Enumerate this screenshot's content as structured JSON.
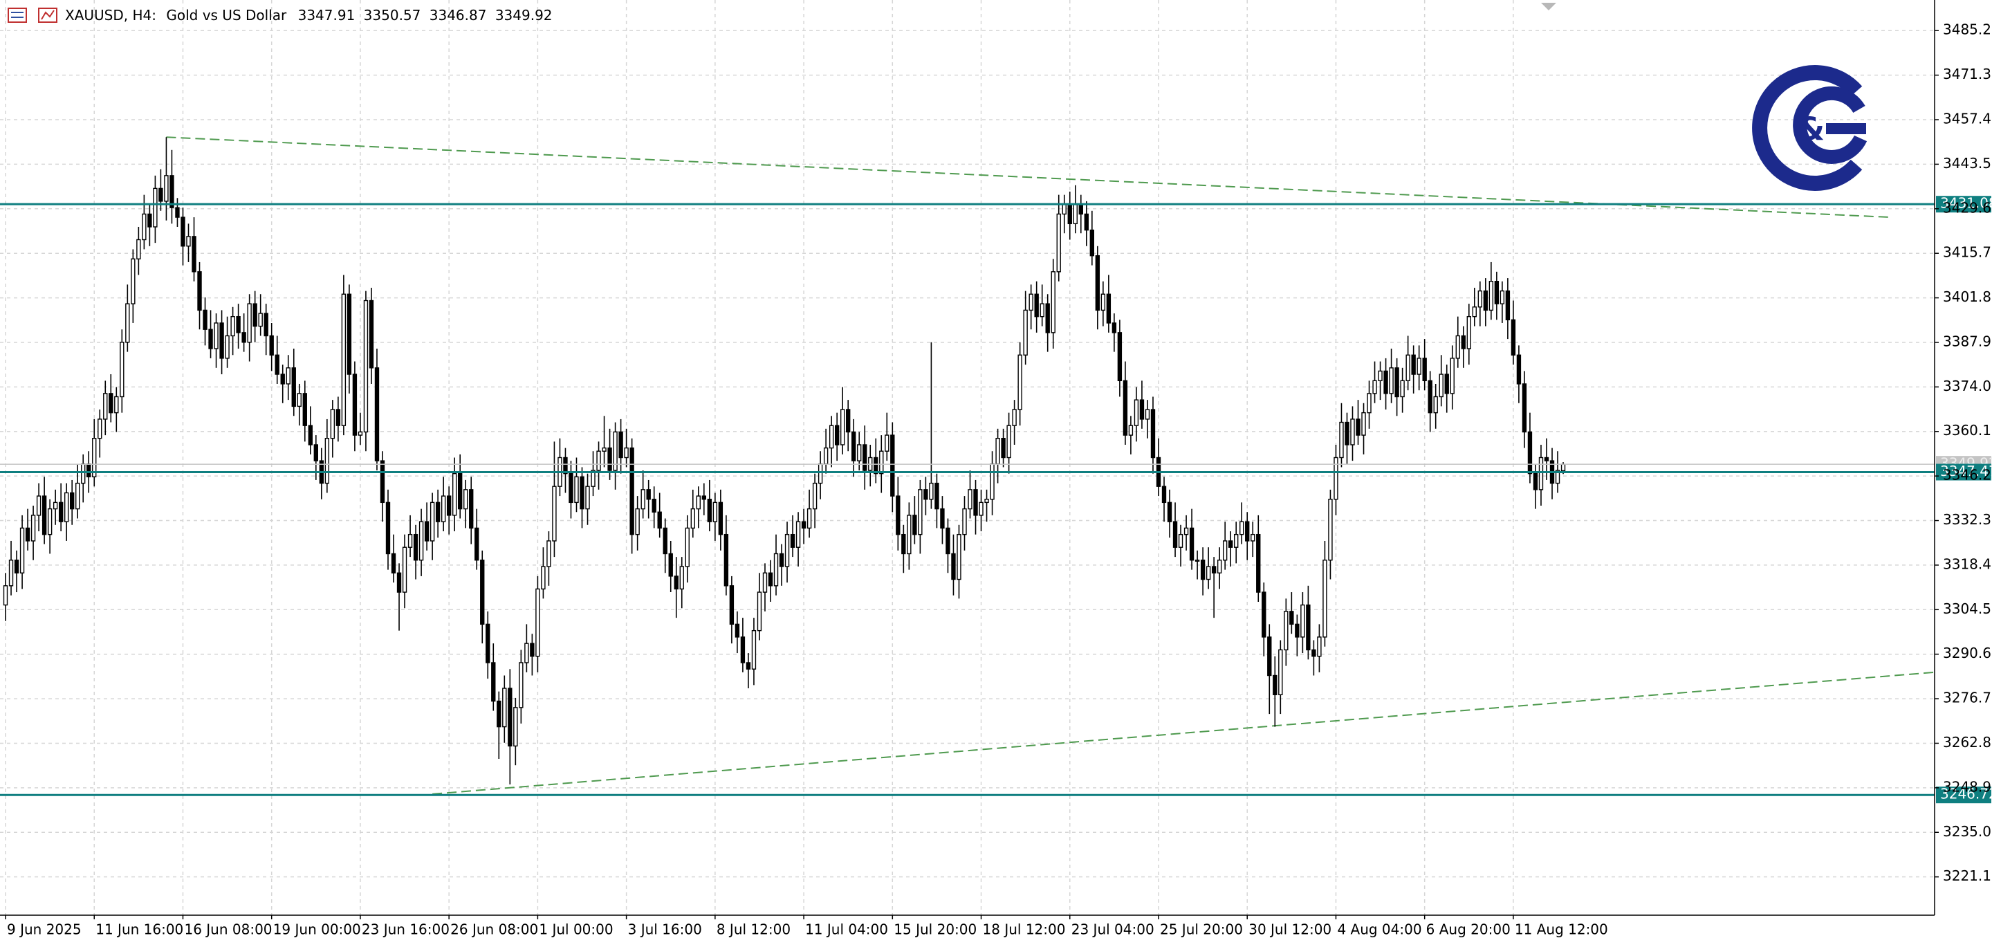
{
  "chart_data": {
    "type": "candlestick",
    "symbol": "XAUUSD, H4:",
    "description": "Gold vs US Dollar",
    "open": [
      3306,
      3312,
      3320,
      3316,
      3330,
      3326,
      3334,
      3340,
      3328,
      3336,
      3338,
      3332,
      3341,
      3336,
      3344,
      3350,
      3346,
      3358,
      3364,
      3372,
      3366,
      3371,
      3388,
      3400,
      3414,
      3420,
      3428,
      3424,
      3436,
      3432,
      3440,
      3430,
      3427,
      3418,
      3421,
      3410,
      3398,
      3392,
      3386,
      3394,
      3383,
      3390,
      3396,
      3391,
      3388,
      3400,
      3393,
      3397,
      3390,
      3384,
      3378,
      3375,
      3380,
      3368,
      3372,
      3362,
      3356,
      3351,
      3344,
      3358,
      3367,
      3362,
      3403,
      3378,
      3359,
      3360,
      3401,
      3380,
      3351,
      3338,
      3322,
      3316,
      3310,
      3324,
      3328,
      3320,
      3332,
      3326,
      3338,
      3332,
      3340,
      3334,
      3347,
      3336,
      3342,
      3330,
      3320,
      3300,
      3288,
      3276,
      3268,
      3280,
      3262,
      3274,
      3288,
      3294,
      3290,
      3311,
      3318,
      3326,
      3343,
      3352,
      3347,
      3338,
      3346,
      3336,
      3343,
      3348,
      3354,
      3355,
      3348,
      3360,
      3352,
      3355,
      3328,
      3336,
      3342,
      3339,
      3335,
      3330,
      3322,
      3315,
      3311,
      3318,
      3330,
      3336,
      3340,
      3339,
      3332,
      3338,
      3328,
      3312,
      3300,
      3296,
      3288,
      3286,
      3298,
      3310,
      3316,
      3312,
      3322,
      3318,
      3328,
      3324,
      3332,
      3330,
      3336,
      3344,
      3350,
      3355,
      3362,
      3356,
      3367,
      3360,
      3351,
      3356,
      3348,
      3352,
      3347,
      3354,
      3359,
      3340,
      3328,
      3322,
      3334,
      3328,
      3342,
      3339,
      3344,
      3336,
      3330,
      3322,
      3314,
      3328,
      3336,
      3342,
      3334,
      3338,
      3339,
      3350,
      3358,
      3352,
      3362,
      3367,
      3384,
      3398,
      3403,
      3396,
      3400,
      3391,
      3410,
      3428,
      3431,
      3425,
      3431,
      3428,
      3423,
      3415,
      3398,
      3403,
      3394,
      3391,
      3376,
      3359,
      3362,
      3370,
      3364,
      3367,
      3352,
      3343,
      3338,
      3332,
      3324,
      3328,
      3330,
      3320,
      3320,
      3314,
      3318,
      3316,
      3320,
      3326,
      3324,
      3328,
      3332,
      3326,
      3328,
      3310,
      3296,
      3284,
      3278,
      3292,
      3304,
      3300,
      3296,
      3306,
      3292,
      3290,
      3296,
      3320,
      3339,
      3352,
      3363,
      3356,
      3364,
      3359,
      3366,
      3372,
      3376,
      3379,
      3372,
      3380,
      3371,
      3376,
      3384,
      3378,
      3383,
      3376,
      3366,
      3371,
      3378,
      3372,
      3383,
      3390,
      3386,
      3396,
      3399,
      3404,
      3398,
      3407,
      3400,
      3404,
      3395,
      3384,
      3375,
      3360,
      3347,
      3342,
      3352,
      3351,
      3344,
      3347.91
    ],
    "high": [
      3316,
      3326,
      3323,
      3334,
      3336,
      3337,
      3344,
      3346,
      3339,
      3342,
      3344,
      3344,
      3345,
      3350,
      3353,
      3354,
      3364,
      3367,
      3376,
      3378,
      3374,
      3392,
      3406,
      3417,
      3424,
      3434,
      3431,
      3440,
      3442,
      3452,
      3448,
      3433,
      3430,
      3425,
      3427,
      3413,
      3402,
      3398,
      3397,
      3398,
      3396,
      3399,
      3400,
      3397,
      3403,
      3404,
      3403,
      3400,
      3394,
      3390,
      3381,
      3384,
      3386,
      3375,
      3376,
      3368,
      3359,
      3355,
      3364,
      3370,
      3371,
      3409,
      3406,
      3382,
      3366,
      3404,
      3405,
      3386,
      3354,
      3342,
      3328,
      3319,
      3328,
      3334,
      3331,
      3336,
      3338,
      3341,
      3342,
      3346,
      3343,
      3352,
      3353,
      3345,
      3346,
      3336,
      3323,
      3304,
      3294,
      3279,
      3284,
      3286,
      3277,
      3292,
      3300,
      3297,
      3315,
      3324,
      3329,
      3357,
      3358,
      3355,
      3351,
      3352,
      3349,
      3347,
      3354,
      3357,
      3365,
      3361,
      3363,
      3364,
      3361,
      3358,
      3340,
      3348,
      3345,
      3343,
      3341,
      3333,
      3326,
      3321,
      3321,
      3334,
      3342,
      3343,
      3344,
      3345,
      3341,
      3342,
      3334,
      3315,
      3304,
      3302,
      3291,
      3302,
      3316,
      3319,
      3320,
      3328,
      3325,
      3332,
      3334,
      3335,
      3336,
      3342,
      3347,
      3354,
      3361,
      3365,
      3366,
      3374,
      3370,
      3364,
      3360,
      3362,
      3356,
      3358,
      3359,
      3366,
      3363,
      3346,
      3331,
      3338,
      3340,
      3345,
      3346,
      3388,
      3347,
      3340,
      3333,
      3328,
      3331,
      3340,
      3348,
      3345,
      3342,
      3342,
      3354,
      3361,
      3361,
      3366,
      3370,
      3388,
      3404,
      3406,
      3407,
      3406,
      3403,
      3414,
      3434,
      3434,
      3435,
      3437,
      3434,
      3432,
      3429,
      3418,
      3407,
      3409,
      3397,
      3395,
      3382,
      3365,
      3374,
      3376,
      3370,
      3371,
      3358,
      3346,
      3342,
      3338,
      3331,
      3334,
      3336,
      3323,
      3324,
      3324,
      3321,
      3324,
      3332,
      3329,
      3332,
      3338,
      3335,
      3332,
      3334,
      3313,
      3300,
      3290,
      3295,
      3308,
      3310,
      3303,
      3310,
      3312,
      3295,
      3300,
      3326,
      3342,
      3356,
      3369,
      3366,
      3368,
      3370,
      3369,
      3376,
      3382,
      3382,
      3383,
      3386,
      3383,
      3380,
      3390,
      3387,
      3387,
      3389,
      3379,
      3375,
      3384,
      3381,
      3387,
      3396,
      3393,
      3400,
      3405,
      3407,
      3408,
      3413,
      3410,
      3407,
      3408,
      3401,
      3387,
      3379,
      3366,
      3350,
      3356,
      3358,
      3355,
      3354,
      3350.57
    ],
    "low": [
      3301,
      3309,
      3310,
      3311,
      3323,
      3320,
      3329,
      3325,
      3322,
      3331,
      3329,
      3326,
      3331,
      3333,
      3338,
      3341,
      3343,
      3352,
      3359,
      3363,
      3360,
      3366,
      3385,
      3394,
      3409,
      3417,
      3418,
      3419,
      3429,
      3426,
      3425,
      3424,
      3412,
      3413,
      3407,
      3392,
      3387,
      3383,
      3380,
      3378,
      3380,
      3384,
      3386,
      3385,
      3382,
      3388,
      3390,
      3384,
      3379,
      3375,
      3369,
      3370,
      3365,
      3362,
      3357,
      3353,
      3345,
      3339,
      3341,
      3352,
      3357,
      3359,
      3372,
      3354,
      3356,
      3354,
      3375,
      3348,
      3332,
      3317,
      3313,
      3298,
      3305,
      3321,
      3314,
      3315,
      3323,
      3320,
      3327,
      3329,
      3328,
      3329,
      3333,
      3330,
      3325,
      3317,
      3294,
      3283,
      3273,
      3258,
      3263,
      3250,
      3256,
      3269,
      3285,
      3284,
      3285,
      3308,
      3312,
      3321,
      3340,
      3341,
      3333,
      3335,
      3330,
      3331,
      3340,
      3342,
      3349,
      3345,
      3342,
      3347,
      3349,
      3322,
      3323,
      3333,
      3333,
      3330,
      3327,
      3316,
      3310,
      3302,
      3305,
      3313,
      3327,
      3330,
      3334,
      3329,
      3326,
      3323,
      3309,
      3294,
      3291,
      3285,
      3280,
      3281,
      3295,
      3304,
      3307,
      3309,
      3312,
      3313,
      3321,
      3318,
      3325,
      3327,
      3330,
      3339,
      3347,
      3349,
      3351,
      3353,
      3354,
      3346,
      3348,
      3342,
      3343,
      3344,
      3341,
      3351,
      3335,
      3323,
      3316,
      3317,
      3325,
      3322,
      3334,
      3336,
      3330,
      3325,
      3316,
      3309,
      3308,
      3323,
      3333,
      3328,
      3329,
      3332,
      3334,
      3344,
      3349,
      3347,
      3356,
      3362,
      3381,
      3392,
      3391,
      3393,
      3385,
      3386,
      3407,
      3422,
      3420,
      3422,
      3422,
      3418,
      3412,
      3392,
      3393,
      3391,
      3385,
      3371,
      3356,
      3353,
      3357,
      3361,
      3358,
      3347,
      3340,
      3332,
      3327,
      3321,
      3318,
      3323,
      3317,
      3314,
      3309,
      3311,
      3302,
      3311,
      3317,
      3318,
      3319,
      3325,
      3320,
      3321,
      3307,
      3290,
      3272,
      3268,
      3272,
      3287,
      3297,
      3290,
      3291,
      3289,
      3284,
      3285,
      3293,
      3314,
      3334,
      3349,
      3350,
      3351,
      3356,
      3353,
      3361,
      3369,
      3370,
      3367,
      3369,
      3365,
      3366,
      3373,
      3372,
      3373,
      3373,
      3360,
      3361,
      3368,
      3366,
      3367,
      3380,
      3380,
      3381,
      3393,
      3393,
      3393,
      3395,
      3395,
      3394,
      3389,
      3381,
      3369,
      3355,
      3344,
      3336,
      3337,
      3345,
      3339,
      3341,
      3346.87
    ],
    "close": [
      3312,
      3320,
      3316,
      3330,
      3326,
      3334,
      3340,
      3328,
      3336,
      3338,
      3332,
      3341,
      3336,
      3344,
      3350,
      3346,
      3358,
      3364,
      3372,
      3366,
      3371,
      3388,
      3400,
      3414,
      3420,
      3428,
      3424,
      3436,
      3432,
      3440,
      3430,
      3427,
      3418,
      3421,
      3410,
      3398,
      3392,
      3386,
      3394,
      3383,
      3390,
      3396,
      3391,
      3388,
      3400,
      3393,
      3397,
      3390,
      3384,
      3378,
      3375,
      3380,
      3368,
      3372,
      3362,
      3356,
      3351,
      3344,
      3358,
      3367,
      3362,
      3403,
      3378,
      3359,
      3360,
      3401,
      3380,
      3351,
      3338,
      3322,
      3316,
      3310,
      3324,
      3328,
      3320,
      3332,
      3326,
      3338,
      3332,
      3340,
      3334,
      3347,
      3336,
      3342,
      3330,
      3320,
      3300,
      3288,
      3276,
      3268,
      3280,
      3262,
      3274,
      3288,
      3294,
      3290,
      3311,
      3318,
      3326,
      3343,
      3352,
      3347,
      3338,
      3346,
      3336,
      3343,
      3348,
      3354,
      3355,
      3348,
      3360,
      3352,
      3355,
      3328,
      3336,
      3342,
      3339,
      3335,
      3330,
      3322,
      3315,
      3311,
      3318,
      3330,
      3336,
      3340,
      3339,
      3332,
      3338,
      3328,
      3312,
      3300,
      3296,
      3288,
      3286,
      3298,
      3310,
      3316,
      3312,
      3322,
      3318,
      3328,
      3324,
      3332,
      3330,
      3336,
      3344,
      3350,
      3355,
      3362,
      3356,
      3367,
      3360,
      3351,
      3356,
      3348,
      3352,
      3347,
      3354,
      3359,
      3340,
      3328,
      3322,
      3334,
      3328,
      3342,
      3339,
      3344,
      3336,
      3330,
      3322,
      3314,
      3328,
      3336,
      3342,
      3334,
      3338,
      3339,
      3350,
      3358,
      3352,
      3362,
      3367,
      3384,
      3398,
      3403,
      3396,
      3400,
      3391,
      3410,
      3428,
      3431,
      3425,
      3431,
      3428,
      3423,
      3415,
      3398,
      3403,
      3394,
      3391,
      3376,
      3359,
      3362,
      3370,
      3364,
      3367,
      3352,
      3343,
      3338,
      3332,
      3324,
      3328,
      3330,
      3320,
      3320,
      3314,
      3318,
      3316,
      3320,
      3326,
      3324,
      3328,
      3332,
      3326,
      3328,
      3310,
      3296,
      3284,
      3278,
      3292,
      3304,
      3300,
      3296,
      3306,
      3292,
      3290,
      3296,
      3320,
      3339,
      3352,
      3363,
      3356,
      3364,
      3359,
      3366,
      3372,
      3376,
      3379,
      3372,
      3380,
      3371,
      3376,
      3384,
      3378,
      3383,
      3376,
      3366,
      3371,
      3378,
      3372,
      3383,
      3390,
      3386,
      3396,
      3399,
      3404,
      3398,
      3407,
      3400,
      3404,
      3395,
      3384,
      3375,
      3360,
      3347,
      3342,
      3352,
      3351,
      3344,
      3348,
      3349.92
    ],
    "up_color": "#ffffff",
    "down_color": "#000000",
    "xlim": [
      -1,
      348
    ],
    "xticks": [
      {
        "value": 0,
        "label": "9 Jun 2025"
      },
      {
        "value": 16,
        "label": "11 Jun 16:00"
      },
      {
        "value": 32,
        "label": "16 Jun 08:00"
      },
      {
        "value": 48,
        "label": "19 Jun 00:00"
      },
      {
        "value": 64,
        "label": "23 Jun 16:00"
      },
      {
        "value": 80,
        "label": "26 Jun 08:00"
      },
      {
        "value": 96,
        "label": "1 Jul 00:00"
      },
      {
        "value": 112,
        "label": "3 Jul 16:00"
      },
      {
        "value": 128,
        "label": "8 Jul 12:00"
      },
      {
        "value": 144,
        "label": "11 Jul 04:00"
      },
      {
        "value": 160,
        "label": "15 Jul 20:00"
      },
      {
        "value": 176,
        "label": "18 Jul 12:00"
      },
      {
        "value": 192,
        "label": "23 Jul 04:00"
      },
      {
        "value": 208,
        "label": "25 Jul 20:00"
      },
      {
        "value": 224,
        "label": "30 Jul 12:00"
      },
      {
        "value": 240,
        "label": "4 Aug 04:00"
      },
      {
        "value": 256,
        "label": "6 Aug 20:00"
      },
      {
        "value": 272,
        "label": "11 Aug 12:00"
      }
    ],
    "ylim": [
      3209.2,
      3494.8
    ],
    "yticks": [
      3485.25,
      3471.35,
      3457.45,
      3443.55,
      3429.65,
      3415.75,
      3401.85,
      3387.95,
      3374.05,
      3360.15,
      3346.25,
      3332.35,
      3318.45,
      3304.55,
      3290.65,
      3276.75,
      3262.85,
      3248.95,
      3235.05,
      3221.15
    ],
    "grid": true,
    "current_price_color": "#c4c4c4",
    "levels": [
      {
        "value": 3431.08,
        "color": "#0f7f80"
      },
      {
        "value": 3347.47,
        "color": "#0f7f80"
      },
      {
        "value": 3246.72,
        "color": "#0f7f80"
      }
    ],
    "trendlines": [
      {
        "x": [
          29,
          340
        ],
        "y": [
          3452,
          3427
        ],
        "color": "#4f9a4f"
      },
      {
        "x": [
          77,
          348
        ],
        "y": [
          3247,
          3285
        ],
        "color": "#4f9a4f"
      }
    ]
  }
}
